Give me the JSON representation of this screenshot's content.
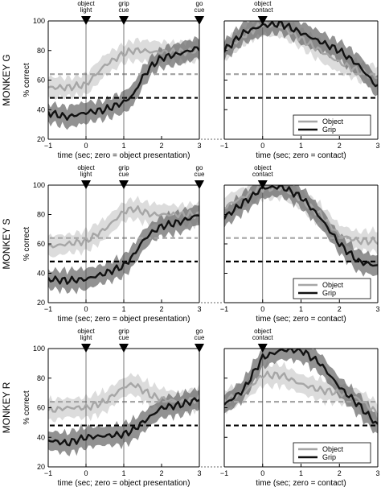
{
  "row_labels": [
    "MONKEY G",
    "MONKEY S",
    "MONKEY R"
  ],
  "colors": {
    "object": "#a6a6a6",
    "grip": "#111111",
    "object_band": "#d6d6d6",
    "grip_band": "#6e6e6e"
  },
  "chart_data": [
    {
      "type": "line",
      "monkey": "MONKEY G",
      "ylabel": "% correct",
      "ylim": [
        20,
        100
      ],
      "yticks": [
        20,
        40,
        60,
        80,
        100
      ],
      "panels": [
        {
          "xlabel": "time (sec; zero = object presentation)",
          "xlim": [
            -1,
            3
          ],
          "xticks": [
            -1,
            0,
            1,
            2,
            3
          ],
          "events": [
            {
              "x": 0,
              "label": [
                "object",
                "light"
              ]
            },
            {
              "x": 1,
              "label": [
                "grip",
                "cue"
              ]
            },
            {
              "x": 3,
              "label": [
                "go",
                "cue"
              ]
            }
          ],
          "chance_levels": {
            "object": 64,
            "grip": 48
          },
          "x": [
            -1,
            -0.5,
            0,
            0.5,
            1,
            1.25,
            1.5,
            1.75,
            2,
            2.5,
            3
          ],
          "series": [
            {
              "name": "Object",
              "values": [
                55,
                55,
                57,
                70,
                78,
                80,
                80,
                79,
                79,
                79,
                80
              ]
            },
            {
              "name": "Grip",
              "values": [
                38,
                35,
                38,
                40,
                45,
                50,
                62,
                70,
                75,
                78,
                82
              ]
            }
          ]
        },
        {
          "xlabel": "time (sec; zero = contact)",
          "xlim": [
            -1,
            3
          ],
          "xticks": [
            -1,
            0,
            1,
            2,
            3
          ],
          "events": [
            {
              "x": 0,
              "label": [
                "object",
                "contact"
              ]
            }
          ],
          "chance_levels": {
            "object": 64,
            "grip": 48
          },
          "x": [
            -1,
            -0.5,
            0,
            0.5,
            1,
            1.5,
            2,
            2.5,
            3
          ],
          "legend": {
            "position": "bottom-right",
            "entries": [
              "Object",
              "Grip"
            ]
          },
          "series": [
            {
              "name": "Object",
              "values": [
                80,
                90,
                98,
                96,
                88,
                80,
                72,
                66,
                62
              ]
            },
            {
              "name": "Grip",
              "values": [
                80,
                92,
                97,
                98,
                92,
                86,
                80,
                70,
                55
              ]
            }
          ]
        }
      ]
    },
    {
      "type": "line",
      "monkey": "MONKEY S",
      "ylabel": "% correct",
      "ylim": [
        20,
        100
      ],
      "yticks": [
        20,
        40,
        60,
        80,
        100
      ],
      "panels": [
        {
          "xlabel": "time (sec; zero = object presentation)",
          "xlim": [
            -1,
            3
          ],
          "xticks": [
            -1,
            0,
            1,
            2,
            3
          ],
          "events": [
            {
              "x": 0,
              "label": [
                "object",
                "light"
              ]
            },
            {
              "x": 1,
              "label": [
                "grip",
                "cue"
              ]
            },
            {
              "x": 3,
              "label": [
                "go",
                "cue"
              ]
            }
          ],
          "chance_levels": {
            "object": 64,
            "grip": 48
          },
          "x": [
            -1,
            -0.5,
            0,
            0.5,
            1,
            1.25,
            1.5,
            1.75,
            2,
            2.5,
            3
          ],
          "series": [
            {
              "name": "Object",
              "values": [
                58,
                60,
                62,
                70,
                82,
                84,
                82,
                80,
                80,
                80,
                80
              ]
            },
            {
              "name": "Grip",
              "values": [
                36,
                35,
                36,
                40,
                45,
                52,
                62,
                68,
                72,
                75,
                80
              ]
            }
          ]
        },
        {
          "xlabel": "time (sec; zero = contact)",
          "xlim": [
            -1,
            3
          ],
          "xticks": [
            -1,
            0,
            1,
            2,
            3
          ],
          "events": [
            {
              "x": 0,
              "label": [
                "object",
                "contact"
              ]
            }
          ],
          "chance_levels": {
            "object": 64,
            "grip": 48
          },
          "x": [
            -1,
            -0.5,
            0,
            0.5,
            1,
            1.5,
            2,
            2.5,
            3
          ],
          "legend": {
            "position": "bottom-right",
            "entries": [
              "Object",
              "Grip"
            ]
          },
          "series": [
            {
              "name": "Object",
              "values": [
                85,
                92,
                98,
                98,
                90,
                80,
                66,
                62,
                62
              ]
            },
            {
              "name": "Grip",
              "values": [
                78,
                88,
                98,
                99,
                92,
                78,
                60,
                48,
                45
              ]
            }
          ]
        }
      ]
    },
    {
      "type": "line",
      "monkey": "MONKEY R",
      "ylabel": "% correct",
      "ylim": [
        20,
        100
      ],
      "yticks": [
        20,
        40,
        60,
        80,
        100
      ],
      "panels": [
        {
          "xlabel": "time (sec; zero = object presentation)",
          "xlim": [
            -1,
            3
          ],
          "xticks": [
            -1,
            0,
            1,
            2,
            3
          ],
          "events": [
            {
              "x": 0,
              "label": [
                "object",
                "light"
              ]
            },
            {
              "x": 1,
              "label": [
                "grip",
                "cue"
              ]
            },
            {
              "x": 3,
              "label": [
                "go",
                "cue"
              ]
            }
          ],
          "chance_levels": {
            "object": 64,
            "grip": 48
          },
          "x": [
            -1,
            -0.5,
            0,
            0.5,
            1,
            1.25,
            1.5,
            1.75,
            2,
            2.5,
            3
          ],
          "series": [
            {
              "name": "Object",
              "values": [
                58,
                60,
                60,
                64,
                74,
                76,
                72,
                68,
                66,
                64,
                66
              ]
            },
            {
              "name": "Grip",
              "values": [
                38,
                36,
                40,
                41,
                42,
                45,
                50,
                55,
                60,
                62,
                66
              ]
            }
          ]
        },
        {
          "xlabel": "time (sec; zero = contact)",
          "xlim": [
            -1,
            3
          ],
          "xticks": [
            -1,
            0,
            1,
            2,
            3
          ],
          "events": [
            {
              "x": 0,
              "label": [
                "object",
                "contact"
              ]
            }
          ],
          "chance_levels": {
            "object": 64,
            "grip": 48
          },
          "x": [
            -1,
            -0.5,
            0,
            0.5,
            1,
            1.5,
            2,
            2.5,
            3
          ],
          "legend": {
            "position": "bottom-right",
            "entries": [
              "Object",
              "Grip"
            ]
          },
          "series": [
            {
              "name": "Object",
              "values": [
                65,
                70,
                82,
                82,
                76,
                72,
                70,
                66,
                56
              ]
            },
            {
              "name": "Grip",
              "values": [
                62,
                72,
                94,
                99,
                99,
                90,
                74,
                62,
                48
              ]
            }
          ]
        }
      ]
    }
  ]
}
